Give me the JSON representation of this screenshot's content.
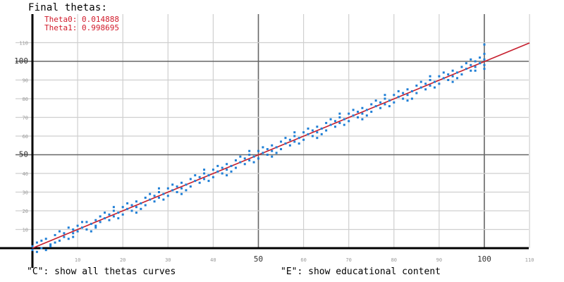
{
  "hud": {
    "title": "Final thetas:",
    "theta0_label": "Theta0: 0.014888",
    "theta1_label": "Theta1: 0.998695",
    "hint_c": "\"C\": show all thetas curves",
    "hint_e": "\"E\": show educational content"
  },
  "colors": {
    "points": "#1f7fd6",
    "fit_line": "#c61f2e",
    "axis": "#000000",
    "major_grid": "#666666",
    "minor_grid": "#cfcfcf",
    "labels": "#d11a2a",
    "ticks": "#999999"
  },
  "chart_data": {
    "type": "scatter",
    "title": "",
    "xlabel": "",
    "ylabel": "",
    "xlim": [
      0,
      110
    ],
    "ylim": [
      0,
      110
    ],
    "x_ticks": [
      10,
      20,
      30,
      40,
      50,
      60,
      70,
      80,
      90,
      100,
      110
    ],
    "y_ticks": [
      10,
      20,
      30,
      40,
      50,
      60,
      70,
      80,
      90,
      100,
      110
    ],
    "grid": true,
    "fit_line": {
      "theta0": 0.014888,
      "theta1": 0.998695
    },
    "points": [
      [
        0,
        1
      ],
      [
        0,
        -1
      ],
      [
        1,
        3
      ],
      [
        2,
        0
      ],
      [
        3,
        -1
      ],
      [
        3,
        5
      ],
      [
        4,
        2
      ],
      [
        5,
        3
      ],
      [
        5,
        7
      ],
      [
        6,
        4
      ],
      [
        7,
        8
      ],
      [
        7,
        6
      ],
      [
        8,
        5
      ],
      [
        9,
        10
      ],
      [
        9,
        8
      ],
      [
        10,
        12
      ],
      [
        10,
        9
      ],
      [
        11,
        11
      ],
      [
        12,
        14
      ],
      [
        12,
        10
      ],
      [
        13,
        13
      ],
      [
        14,
        15
      ],
      [
        14,
        12
      ],
      [
        15,
        17
      ],
      [
        15,
        14
      ],
      [
        16,
        16
      ],
      [
        17,
        18
      ],
      [
        17,
        15
      ],
      [
        18,
        20
      ],
      [
        18,
        17
      ],
      [
        19,
        19
      ],
      [
        20,
        22
      ],
      [
        20,
        18
      ],
      [
        21,
        21
      ],
      [
        22,
        23
      ],
      [
        22,
        20
      ],
      [
        23,
        25
      ],
      [
        23,
        22
      ],
      [
        24,
        24
      ],
      [
        25,
        27
      ],
      [
        25,
        23
      ],
      [
        26,
        26
      ],
      [
        27,
        28
      ],
      [
        27,
        25
      ],
      [
        28,
        30
      ],
      [
        28,
        27
      ],
      [
        29,
        29
      ],
      [
        30,
        32
      ],
      [
        30,
        28
      ],
      [
        31,
        31
      ],
      [
        32,
        33
      ],
      [
        32,
        30
      ],
      [
        33,
        35
      ],
      [
        33,
        32
      ],
      [
        34,
        34
      ],
      [
        35,
        37
      ],
      [
        35,
        33
      ],
      [
        36,
        36
      ],
      [
        37,
        38
      ],
      [
        37,
        35
      ],
      [
        38,
        40
      ],
      [
        38,
        37
      ],
      [
        39,
        39
      ],
      [
        40,
        42
      ],
      [
        40,
        38
      ],
      [
        41,
        41
      ],
      [
        42,
        43
      ],
      [
        42,
        40
      ],
      [
        43,
        45
      ],
      [
        43,
        42
      ],
      [
        44,
        44
      ],
      [
        45,
        47
      ],
      [
        45,
        43
      ],
      [
        46,
        46
      ],
      [
        47,
        48
      ],
      [
        47,
        45
      ],
      [
        48,
        50
      ],
      [
        48,
        47
      ],
      [
        49,
        49
      ],
      [
        50,
        52
      ],
      [
        50,
        48
      ],
      [
        51,
        51
      ],
      [
        52,
        53
      ],
      [
        52,
        50
      ],
      [
        53,
        55
      ],
      [
        53,
        52
      ],
      [
        54,
        54
      ],
      [
        55,
        57
      ],
      [
        55,
        53
      ],
      [
        56,
        56
      ],
      [
        57,
        58
      ],
      [
        57,
        55
      ],
      [
        58,
        60
      ],
      [
        58,
        57
      ],
      [
        59,
        59
      ],
      [
        60,
        62
      ],
      [
        60,
        58
      ],
      [
        61,
        61
      ],
      [
        62,
        63
      ],
      [
        62,
        60
      ],
      [
        63,
        65
      ],
      [
        63,
        62
      ],
      [
        64,
        64
      ],
      [
        65,
        67
      ],
      [
        65,
        63
      ],
      [
        66,
        66
      ],
      [
        67,
        68
      ],
      [
        67,
        65
      ],
      [
        68,
        70
      ],
      [
        68,
        67
      ],
      [
        69,
        69
      ],
      [
        70,
        72
      ],
      [
        70,
        68
      ],
      [
        71,
        71
      ],
      [
        72,
        73
      ],
      [
        72,
        70
      ],
      [
        73,
        75
      ],
      [
        73,
        72
      ],
      [
        74,
        74
      ],
      [
        75,
        77
      ],
      [
        75,
        73
      ],
      [
        76,
        76
      ],
      [
        77,
        78
      ],
      [
        77,
        75
      ],
      [
        78,
        80
      ],
      [
        78,
        77
      ],
      [
        79,
        79
      ],
      [
        80,
        82
      ],
      [
        80,
        78
      ],
      [
        81,
        81
      ],
      [
        82,
        83
      ],
      [
        82,
        80
      ],
      [
        83,
        85
      ],
      [
        83,
        82
      ],
      [
        84,
        84
      ],
      [
        85,
        87
      ],
      [
        85,
        83
      ],
      [
        86,
        86
      ],
      [
        87,
        88
      ],
      [
        87,
        85
      ],
      [
        88,
        90
      ],
      [
        88,
        87
      ],
      [
        89,
        89
      ],
      [
        90,
        92
      ],
      [
        90,
        88
      ],
      [
        91,
        91
      ],
      [
        92,
        93
      ],
      [
        92,
        90
      ],
      [
        93,
        95
      ],
      [
        93,
        92
      ],
      [
        94,
        94
      ],
      [
        95,
        97
      ],
      [
        95,
        93
      ],
      [
        96,
        96
      ],
      [
        97,
        98
      ],
      [
        97,
        95
      ],
      [
        98,
        100
      ],
      [
        98,
        97
      ],
      [
        99,
        99
      ],
      [
        100,
        101
      ],
      [
        100,
        98
      ],
      [
        100,
        104
      ],
      [
        100,
        109
      ],
      [
        100,
        96
      ],
      [
        99,
        102
      ],
      [
        97,
        101
      ],
      [
        96,
        99
      ],
      [
        94,
        91
      ],
      [
        91,
        94
      ],
      [
        89,
        86
      ],
      [
        86,
        89
      ],
      [
        84,
        80
      ],
      [
        81,
        84
      ],
      [
        79,
        76
      ],
      [
        76,
        79
      ],
      [
        74,
        71
      ],
      [
        71,
        74
      ],
      [
        69,
        66
      ],
      [
        66,
        69
      ],
      [
        64,
        61
      ],
      [
        61,
        64
      ],
      [
        59,
        56
      ],
      [
        56,
        59
      ],
      [
        54,
        51
      ],
      [
        51,
        54
      ],
      [
        49,
        46
      ],
      [
        46,
        49
      ],
      [
        44,
        41
      ],
      [
        41,
        44
      ],
      [
        39,
        36
      ],
      [
        36,
        39
      ],
      [
        34,
        31
      ],
      [
        31,
        34
      ],
      [
        29,
        26
      ],
      [
        26,
        29
      ],
      [
        24,
        21
      ],
      [
        21,
        24
      ],
      [
        19,
        16
      ],
      [
        16,
        19
      ],
      [
        14,
        11
      ],
      [
        11,
        14
      ],
      [
        9,
        6
      ],
      [
        6,
        9
      ],
      [
        4,
        1
      ],
      [
        2,
        4
      ],
      [
        1,
        -2
      ],
      [
        8,
        11
      ],
      [
        13,
        9
      ],
      [
        18,
        22
      ],
      [
        23,
        19
      ],
      [
        28,
        32
      ],
      [
        33,
        29
      ],
      [
        38,
        42
      ],
      [
        43,
        39
      ],
      [
        48,
        52
      ],
      [
        53,
        49
      ],
      [
        58,
        62
      ],
      [
        63,
        59
      ],
      [
        68,
        72
      ],
      [
        73,
        69
      ],
      [
        78,
        82
      ],
      [
        83,
        79
      ],
      [
        88,
        92
      ],
      [
        93,
        89
      ],
      [
        98,
        95
      ]
    ]
  }
}
